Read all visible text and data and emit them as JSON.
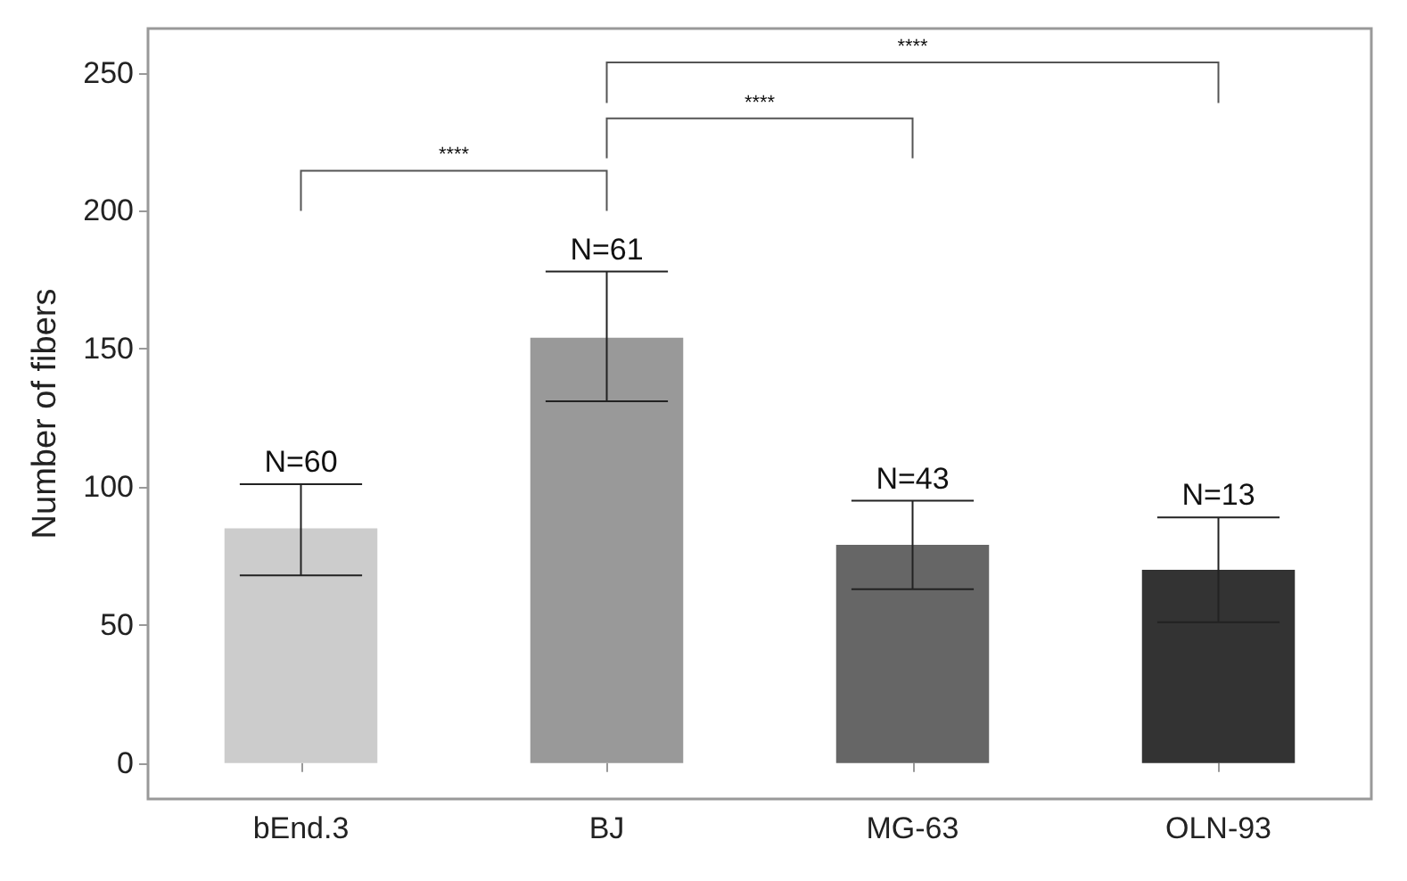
{
  "chart_data": {
    "type": "bar",
    "ylabel": "Number of fibers",
    "categories": [
      "bEnd.3",
      "BJ",
      "MG-63",
      "OLN-93"
    ],
    "values": [
      85,
      154,
      79,
      70
    ],
    "colors": [
      "#cccccc",
      "#999999",
      "#666666",
      "#333333"
    ],
    "errors": [
      [
        68,
        101
      ],
      [
        131,
        178
      ],
      [
        63,
        95
      ],
      [
        51,
        89
      ]
    ],
    "ylim": [
      -13,
      266
    ],
    "yticks": [
      0,
      50,
      100,
      150,
      200,
      250
    ],
    "grid": false,
    "annotations": [
      {
        "text": "N=60",
        "x": "bEnd.3",
        "y": 101
      },
      {
        "text": "N=61",
        "x": "BJ",
        "y": 178
      },
      {
        "text": "N=43",
        "x": "MG-63",
        "y": 95
      },
      {
        "text": "N=13",
        "x": "OLN-93",
        "y": 89
      },
      "****",
      "****",
      "****"
    ]
  }
}
